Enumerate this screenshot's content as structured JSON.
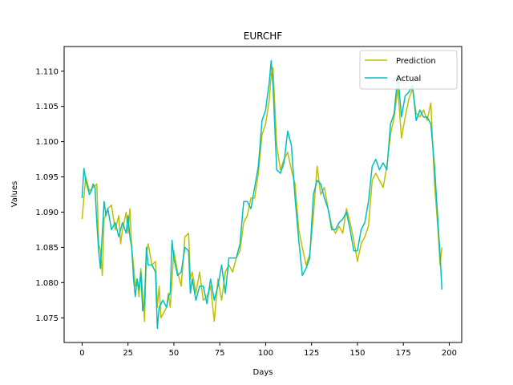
{
  "chart_data": {
    "type": "line",
    "title": "EURCHF",
    "xlabel": "Days",
    "ylabel": "Values",
    "xlim": [
      -9.8,
      206.8
    ],
    "ylim": [
      1.0715,
      1.1135
    ],
    "xticks": [
      0,
      25,
      50,
      75,
      100,
      125,
      150,
      175,
      200
    ],
    "yticks": [
      1.075,
      1.08,
      1.085,
      1.09,
      1.095,
      1.1,
      1.105,
      1.11
    ],
    "ytick_labels": [
      "1.075",
      "1.080",
      "1.085",
      "1.090",
      "1.095",
      "1.100",
      "1.105",
      "1.110"
    ],
    "legend_position": "top-right",
    "grid": false,
    "series": [
      {
        "name": "Prediction",
        "color": "#bfbf00",
        "points": [
          [
            0,
            1.089
          ],
          [
            2,
            1.095
          ],
          [
            4,
            1.093
          ],
          [
            6,
            1.0935
          ],
          [
            8,
            1.094
          ],
          [
            9,
            1.0855
          ],
          [
            10,
            1.0845
          ],
          [
            11,
            1.081
          ],
          [
            12,
            1.089
          ],
          [
            14,
            1.0905
          ],
          [
            16,
            1.091
          ],
          [
            18,
            1.0875
          ],
          [
            20,
            1.0895
          ],
          [
            21,
            1.0855
          ],
          [
            22,
            1.0875
          ],
          [
            24,
            1.09
          ],
          [
            25,
            1.087
          ],
          [
            26,
            1.0905
          ],
          [
            27,
            1.085
          ],
          [
            28,
            1.0825
          ],
          [
            29,
            1.0795
          ],
          [
            30,
            1.0805
          ],
          [
            31,
            1.078
          ],
          [
            32,
            1.082
          ],
          [
            33,
            1.0785
          ],
          [
            34,
            1.0745
          ],
          [
            35,
            1.084
          ],
          [
            36,
            1.0855
          ],
          [
            38,
            1.0825
          ],
          [
            40,
            1.083
          ],
          [
            41,
            1.0765
          ],
          [
            42,
            1.0795
          ],
          [
            43,
            1.075
          ],
          [
            44,
            1.0755
          ],
          [
            46,
            1.0765
          ],
          [
            47,
            1.0785
          ],
          [
            48,
            1.0765
          ],
          [
            50,
            1.0845
          ],
          [
            52,
            1.0815
          ],
          [
            54,
            1.0795
          ],
          [
            56,
            1.0865
          ],
          [
            58,
            1.087
          ],
          [
            59,
            1.0805
          ],
          [
            60,
            1.0815
          ],
          [
            62,
            1.0785
          ],
          [
            64,
            1.0815
          ],
          [
            66,
            1.0775
          ],
          [
            68,
            1.078
          ],
          [
            70,
            1.0795
          ],
          [
            72,
            1.0745
          ],
          [
            74,
            1.0805
          ],
          [
            76,
            1.0775
          ],
          [
            78,
            1.0815
          ],
          [
            80,
            1.0825
          ],
          [
            82,
            1.0815
          ],
          [
            84,
            1.0835
          ],
          [
            86,
            1.0845
          ],
          [
            88,
            1.0885
          ],
          [
            90,
            1.0895
          ],
          [
            92,
            1.092
          ],
          [
            94,
            1.092
          ],
          [
            96,
            1.0955
          ],
          [
            98,
            1.101
          ],
          [
            100,
            1.1025
          ],
          [
            102,
            1.106
          ],
          [
            103,
            1.1095
          ],
          [
            104,
            1.1105
          ],
          [
            106,
            1.0995
          ],
          [
            108,
            1.096
          ],
          [
            110,
            1.0975
          ],
          [
            112,
            1.0985
          ],
          [
            114,
            1.096
          ],
          [
            116,
            1.094
          ],
          [
            118,
            1.0875
          ],
          [
            120,
            1.085
          ],
          [
            122,
            1.0825
          ],
          [
            124,
            1.084
          ],
          [
            126,
            1.0895
          ],
          [
            128,
            1.0965
          ],
          [
            130,
            1.0925
          ],
          [
            132,
            1.0935
          ],
          [
            134,
            1.0905
          ],
          [
            136,
            1.088
          ],
          [
            138,
            1.087
          ],
          [
            140,
            1.088
          ],
          [
            142,
            1.087
          ],
          [
            144,
            1.0905
          ],
          [
            146,
            1.0885
          ],
          [
            148,
            1.086
          ],
          [
            150,
            1.083
          ],
          [
            152,
            1.0855
          ],
          [
            154,
            1.0865
          ],
          [
            156,
            1.088
          ],
          [
            158,
            1.0945
          ],
          [
            160,
            1.0955
          ],
          [
            162,
            1.0945
          ],
          [
            164,
            1.0935
          ],
          [
            166,
            1.0965
          ],
          [
            168,
            1.101
          ],
          [
            170,
            1.1035
          ],
          [
            172,
            1.1075
          ],
          [
            174,
            1.1005
          ],
          [
            176,
            1.1035
          ],
          [
            178,
            1.106
          ],
          [
            180,
            1.1075
          ],
          [
            182,
            1.104
          ],
          [
            184,
            1.1035
          ],
          [
            186,
            1.1045
          ],
          [
            188,
            1.103
          ],
          [
            190,
            1.1055
          ],
          [
            192,
            1.094
          ],
          [
            194,
            1.087
          ],
          [
            195,
            1.0825
          ],
          [
            196,
            1.085
          ]
        ]
      },
      {
        "name": "Actual",
        "color": "#00bfbf",
        "points": [
          [
            0,
            1.092
          ],
          [
            1,
            1.0962
          ],
          [
            2,
            1.0945
          ],
          [
            4,
            1.0925
          ],
          [
            5,
            1.093
          ],
          [
            6,
            1.094
          ],
          [
            7,
            1.0935
          ],
          [
            8,
            1.0885
          ],
          [
            9,
            1.0845
          ],
          [
            10,
            1.082
          ],
          [
            11,
            1.087
          ],
          [
            12,
            1.0915
          ],
          [
            13,
            1.0895
          ],
          [
            14,
            1.0905
          ],
          [
            16,
            1.0875
          ],
          [
            18,
            1.0885
          ],
          [
            20,
            1.0865
          ],
          [
            22,
            1.0885
          ],
          [
            24,
            1.087
          ],
          [
            25,
            1.0895
          ],
          [
            26,
            1.0865
          ],
          [
            27,
            1.085
          ],
          [
            28,
            1.0805
          ],
          [
            29,
            1.078
          ],
          [
            30,
            1.0805
          ],
          [
            31,
            1.079
          ],
          [
            32,
            1.0815
          ],
          [
            33,
            1.076
          ],
          [
            34,
            1.077
          ],
          [
            35,
            1.085
          ],
          [
            36,
            1.0825
          ],
          [
            38,
            1.0825
          ],
          [
            40,
            1.0815
          ],
          [
            41,
            1.0735
          ],
          [
            42,
            1.0765
          ],
          [
            44,
            1.0775
          ],
          [
            46,
            1.0765
          ],
          [
            47,
            1.078
          ],
          [
            48,
            1.0785
          ],
          [
            49,
            1.086
          ],
          [
            50,
            1.0835
          ],
          [
            52,
            1.081
          ],
          [
            54,
            1.0815
          ],
          [
            56,
            1.085
          ],
          [
            58,
            1.0845
          ],
          [
            59,
            1.0785
          ],
          [
            60,
            1.0805
          ],
          [
            62,
            1.0775
          ],
          [
            64,
            1.0795
          ],
          [
            66,
            1.0795
          ],
          [
            68,
            1.077
          ],
          [
            70,
            1.0805
          ],
          [
            72,
            1.0775
          ],
          [
            74,
            1.0795
          ],
          [
            76,
            1.0825
          ],
          [
            78,
            1.0785
          ],
          [
            80,
            1.0835
          ],
          [
            82,
            1.0835
          ],
          [
            84,
            1.0835
          ],
          [
            86,
            1.0855
          ],
          [
            88,
            1.0915
          ],
          [
            90,
            1.0915
          ],
          [
            92,
            1.0905
          ],
          [
            94,
            1.0935
          ],
          [
            96,
            1.0965
          ],
          [
            98,
            1.103
          ],
          [
            100,
            1.1045
          ],
          [
            102,
            1.1085
          ],
          [
            103,
            1.1115
          ],
          [
            104,
            1.108
          ],
          [
            106,
            1.096
          ],
          [
            108,
            1.0955
          ],
          [
            110,
            1.097
          ],
          [
            112,
            1.1015
          ],
          [
            114,
            1.0995
          ],
          [
            116,
            1.092
          ],
          [
            118,
            1.086
          ],
          [
            120,
            1.081
          ],
          [
            122,
            1.082
          ],
          [
            124,
            1.0835
          ],
          [
            126,
            1.0925
          ],
          [
            128,
            1.0945
          ],
          [
            130,
            1.094
          ],
          [
            132,
            1.092
          ],
          [
            134,
            1.0905
          ],
          [
            136,
            1.0875
          ],
          [
            138,
            1.0875
          ],
          [
            140,
            1.0885
          ],
          [
            142,
            1.089
          ],
          [
            144,
            1.09
          ],
          [
            146,
            1.0875
          ],
          [
            148,
            1.0845
          ],
          [
            150,
            1.0845
          ],
          [
            152,
            1.0875
          ],
          [
            154,
            1.0885
          ],
          [
            156,
            1.0915
          ],
          [
            158,
            1.0965
          ],
          [
            160,
            1.0975
          ],
          [
            162,
            1.096
          ],
          [
            164,
            1.097
          ],
          [
            166,
            1.096
          ],
          [
            168,
            1.1025
          ],
          [
            170,
            1.104
          ],
          [
            172,
            1.1095
          ],
          [
            174,
            1.1035
          ],
          [
            176,
            1.1065
          ],
          [
            178,
            1.107
          ],
          [
            180,
            1.108
          ],
          [
            182,
            1.103
          ],
          [
            184,
            1.1045
          ],
          [
            186,
            1.1035
          ],
          [
            188,
            1.1035
          ],
          [
            190,
            1.1025
          ],
          [
            192,
            1.0965
          ],
          [
            194,
            1.088
          ],
          [
            195,
            1.084
          ],
          [
            196,
            1.079
          ]
        ]
      }
    ]
  }
}
